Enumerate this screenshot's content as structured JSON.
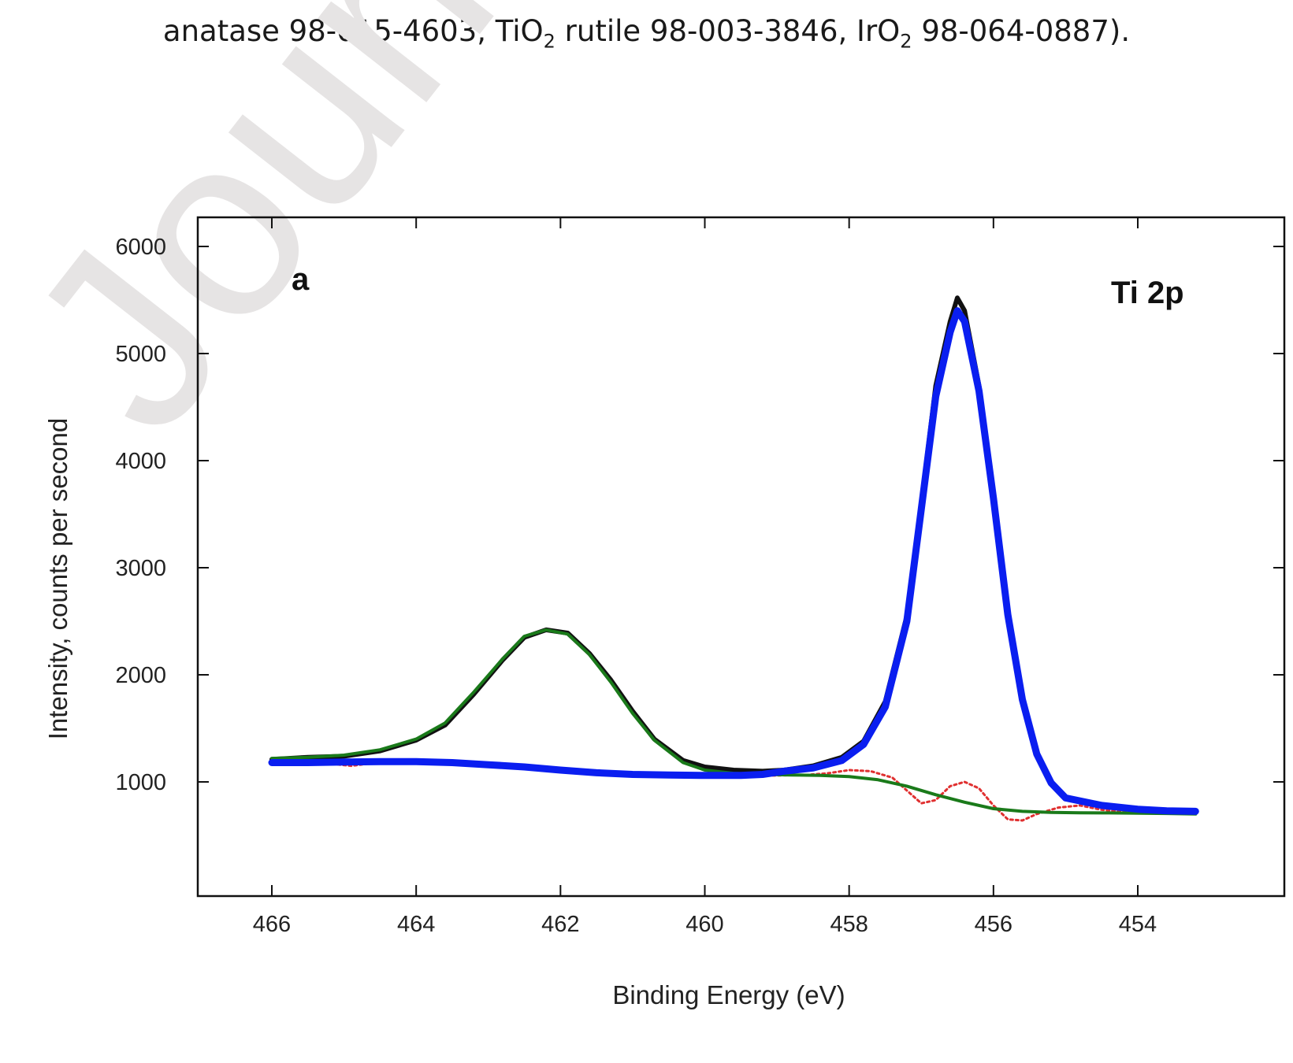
{
  "caption": {
    "part1": "anatase 98-015-4603, TiO",
    "sub1": "2",
    "part2": " rutile 98-003-3846, IrO",
    "sub2": "2",
    "part3": " 98-064-0887)."
  },
  "watermark": "Journal P",
  "colors": {
    "measured": "#111111",
    "fit_ti3": "#1a7a1a",
    "fit_ti4": "#0a1ef0",
    "residual": "#e03030",
    "axis": "#111111"
  },
  "chart_data": {
    "type": "line",
    "xlabel": "Binding Energy (eV)",
    "ylabel": "Intensity, counts per second",
    "xlim": [
      467,
      452.2
    ],
    "ylim": [
      0,
      6300
    ],
    "x_reversed": true,
    "grid": false,
    "x_ticks": [
      466,
      464,
      462,
      460,
      458,
      456,
      454
    ],
    "y_ticks": [
      1000,
      2000,
      3000,
      4000,
      5000,
      6000
    ],
    "annotations": {
      "panel": "a",
      "region": "Ti 2p"
    },
    "series": [
      {
        "role": "measured",
        "x": [
          466,
          465.5,
          465,
          464.5,
          464,
          463.6,
          463.2,
          462.8,
          462.5,
          462.2,
          461.9,
          461.6,
          461.3,
          461.0,
          460.7,
          460.3,
          460.0,
          459.6,
          459.2,
          458.9,
          458.5,
          458.1,
          457.8,
          457.5,
          457.2,
          457.0,
          456.8,
          456.6,
          456.5,
          456.4,
          456.2,
          456.0,
          455.8,
          455.6,
          455.4,
          455.2,
          455.0,
          454.5,
          454.0,
          453.6,
          453.2
        ],
        "y": [
          1210,
          1230,
          1240,
          1290,
          1390,
          1530,
          1820,
          2140,
          2350,
          2420,
          2390,
          2200,
          1950,
          1660,
          1400,
          1200,
          1140,
          1110,
          1100,
          1110,
          1150,
          1230,
          1380,
          1750,
          2550,
          3600,
          4700,
          5300,
          5520,
          5400,
          4700,
          3700,
          2600,
          1800,
          1280,
          1000,
          860,
          780,
          750,
          735,
          730
        ]
      },
      {
        "role": "fit-green",
        "x": [
          466,
          465.5,
          465,
          464.5,
          464,
          463.6,
          463.2,
          462.8,
          462.5,
          462.2,
          461.9,
          461.6,
          461.3,
          461.0,
          460.7,
          460.3,
          460.0,
          459.6,
          459.2,
          458.8,
          458.4,
          458.0,
          457.6,
          457.2,
          456.8,
          456.4,
          456.0,
          455.6,
          455.2,
          454.8,
          454.4,
          454.0,
          453.6,
          453.2
        ],
        "y": [
          1220,
          1230,
          1250,
          1300,
          1400,
          1550,
          1840,
          2150,
          2360,
          2420,
          2380,
          2190,
          1930,
          1640,
          1390,
          1180,
          1110,
          1080,
          1070,
          1065,
          1060,
          1050,
          1020,
          960,
          880,
          810,
          750,
          725,
          715,
          712,
          710,
          708,
          705,
          700
        ]
      },
      {
        "role": "fit-blue",
        "x": [
          466,
          465.5,
          465,
          464.5,
          464,
          463.5,
          463,
          462.5,
          462,
          461.5,
          461,
          460.5,
          460,
          459.5,
          459.2,
          458.9,
          458.5,
          458.1,
          457.8,
          457.5,
          457.2,
          457.0,
          456.8,
          456.6,
          456.5,
          456.4,
          456.2,
          456.0,
          455.8,
          455.6,
          455.4,
          455.2,
          455.0,
          454.5,
          454.0,
          453.6,
          453.2
        ],
        "y": [
          1180,
          1180,
          1185,
          1190,
          1190,
          1180,
          1160,
          1140,
          1110,
          1085,
          1070,
          1065,
          1060,
          1060,
          1070,
          1100,
          1130,
          1200,
          1350,
          1700,
          2500,
          3550,
          4600,
          5200,
          5400,
          5300,
          4650,
          3650,
          2560,
          1770,
          1260,
          990,
          850,
          780,
          745,
          730,
          725
        ]
      },
      {
        "role": "residual",
        "x": [
          466,
          465.6,
          465.2,
          464.9,
          464.6,
          464.2,
          463.8,
          463.4,
          463.0,
          462.6,
          462.2,
          461.8,
          461.4,
          461.0,
          460.6,
          460.2,
          459.8,
          459.4,
          459.0,
          458.6,
          458.3,
          458.0,
          457.7,
          457.4,
          457.2,
          457.0,
          456.8,
          456.6,
          456.4,
          456.2,
          456.0,
          455.8,
          455.6,
          455.4,
          455.1,
          454.8,
          454.5,
          454.2,
          453.9,
          453.6,
          453.2
        ],
        "y": [
          1190,
          1180,
          1170,
          1150,
          1175,
          1190,
          1185,
          1170,
          1160,
          1140,
          1100,
          1090,
          1070,
          1060,
          1065,
          1060,
          1055,
          1055,
          1060,
          1065,
          1080,
          1110,
          1100,
          1040,
          920,
          800,
          830,
          960,
          1000,
          940,
          780,
          650,
          640,
          700,
          760,
          780,
          740,
          720,
          720,
          705,
          705
        ]
      }
    ]
  }
}
